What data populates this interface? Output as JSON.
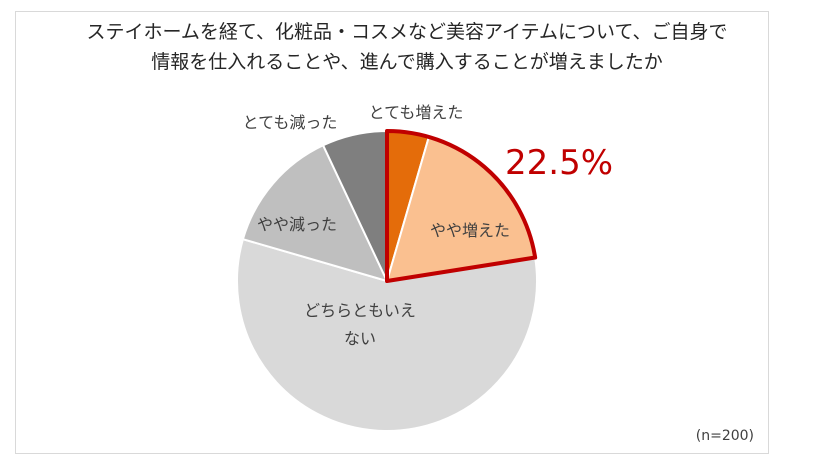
{
  "chart_data": {
    "type": "pie",
    "title_lines": [
      "ステイホームを経て、化粧品・コスメなど美容アイテムについて、ご自身で",
      "情報を仕入れることや、進んで購入することが増えましたか"
    ],
    "slices": [
      {
        "label": "とても増えた",
        "value": 4.5,
        "color": "#e46c0a"
      },
      {
        "label": "やや増えた",
        "value": 18.0,
        "color": "#fac090"
      },
      {
        "label": "どちらともいえない",
        "label_lines": [
          "どちらともいえ",
          "ない"
        ],
        "value": 57.0,
        "color": "#d9d9d9"
      },
      {
        "label": "やや減った",
        "value": 13.5,
        "color": "#bfbfbf"
      },
      {
        "label": "とても減った",
        "value": 7.0,
        "color": "#7f7f7f"
      }
    ],
    "highlight": {
      "value_label": "22.5%",
      "color": "#c00000",
      "slice_count": 2
    },
    "sample_note": "(n=200)"
  }
}
